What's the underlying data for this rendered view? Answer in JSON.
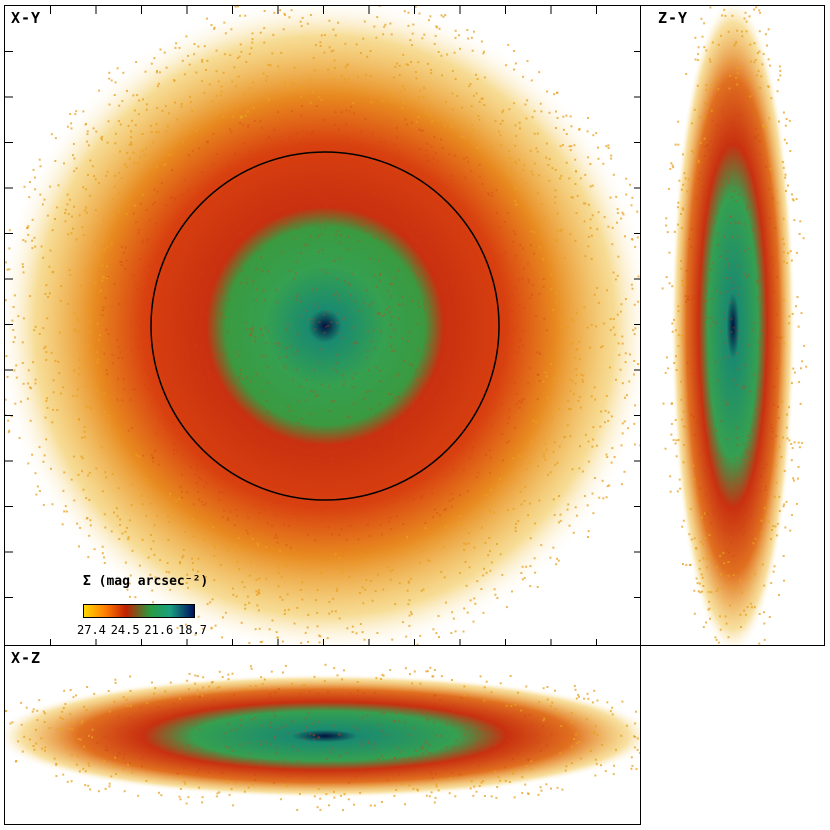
{
  "panels": {
    "xy": {
      "label": "X-Y"
    },
    "zy": {
      "label": "Z-Y"
    },
    "xz": {
      "label": "X-Z"
    }
  },
  "colorbar": {
    "title": "Σ (mag arcsec⁻²)",
    "ticks": [
      "27.4",
      "24.5",
      "21.6",
      "18.7"
    ],
    "colors": [
      "#ffd800",
      "#ff7a00",
      "#c02000",
      "#2a9a40",
      "#1aa080",
      "#001060"
    ]
  },
  "image": {
    "description_colors": {
      "outer": "#e8a020",
      "mid": "#d03010",
      "inner": "#30a050",
      "core": "#001040"
    }
  }
}
